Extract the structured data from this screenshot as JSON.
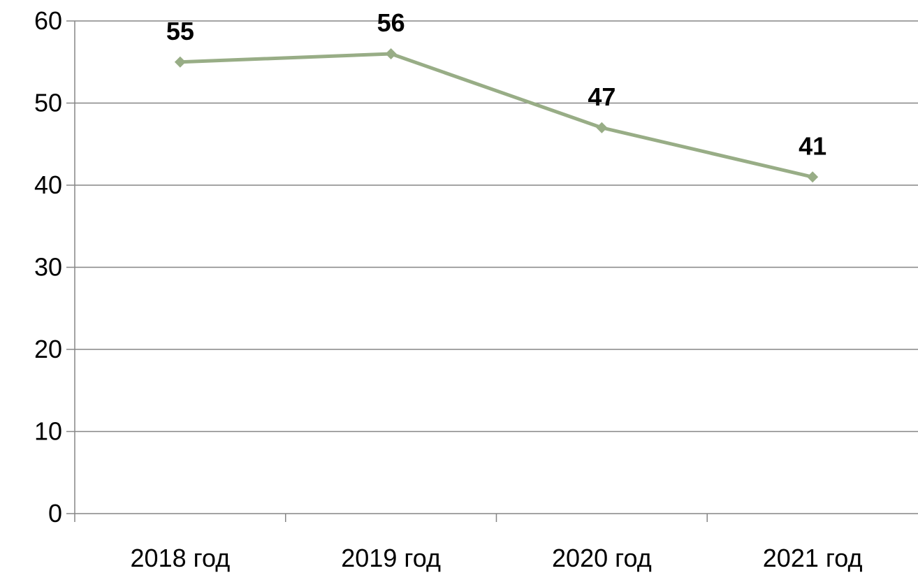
{
  "chart_data": {
    "type": "line",
    "categories": [
      "2018 год",
      "2019 год",
      "2020 год",
      "2021 год"
    ],
    "series": [
      {
        "values": [
          55,
          56,
          47,
          41
        ],
        "data_labels": [
          "55",
          "56",
          "47",
          "41"
        ],
        "color": "#98ad86",
        "marker": "diamond"
      }
    ],
    "title": "",
    "xlabel": "",
    "ylabel": "",
    "ylim": [
      0,
      60
    ],
    "yticks": [
      0,
      10,
      20,
      30,
      40,
      50,
      60
    ],
    "ytick_labels": [
      "0",
      "10",
      "20",
      "30",
      "40",
      "50",
      "60"
    ],
    "grid": true,
    "grid_color": "#868686",
    "axis_color": "#868686",
    "legend": false
  }
}
